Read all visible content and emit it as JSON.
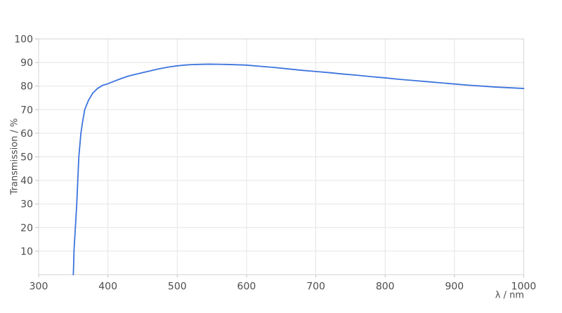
{
  "chart_data": {
    "type": "line",
    "title": "",
    "xlabel": "λ / nm",
    "ylabel": "Transmission / %",
    "xlim": [
      300,
      1000
    ],
    "ylim": [
      0,
      100
    ],
    "x_ticks": [
      300,
      400,
      500,
      600,
      700,
      800,
      900,
      1000
    ],
    "y_ticks": [
      10,
      20,
      30,
      40,
      50,
      60,
      70,
      80,
      90,
      100
    ],
    "grid": true,
    "legend_position": "none",
    "colors": {
      "line": "#3d74dd",
      "grid": "#e5e5e5",
      "border": "#d6d6d6",
      "tick": "#c4c4c4",
      "text": "#4d4d4d",
      "background": "#ffffff"
    },
    "series": [
      {
        "name": "Transmission",
        "points": [
          [
            350,
            0
          ],
          [
            350.5,
            4
          ],
          [
            351,
            10
          ],
          [
            353,
            20
          ],
          [
            355,
            30
          ],
          [
            356.5,
            40
          ],
          [
            358,
            50
          ],
          [
            361,
            60
          ],
          [
            363.5,
            65
          ],
          [
            366.5,
            70
          ],
          [
            372,
            74
          ],
          [
            378,
            77
          ],
          [
            385,
            79
          ],
          [
            392,
            80.3
          ],
          [
            400,
            81
          ],
          [
            410,
            82.2
          ],
          [
            420,
            83.3
          ],
          [
            430,
            84.3
          ],
          [
            440,
            85
          ],
          [
            450,
            85.7
          ],
          [
            460,
            86.4
          ],
          [
            470,
            87.1
          ],
          [
            480,
            87.7
          ],
          [
            490,
            88.2
          ],
          [
            500,
            88.6
          ],
          [
            510,
            88.9
          ],
          [
            520,
            89.1
          ],
          [
            530,
            89.2
          ],
          [
            545,
            89.3
          ],
          [
            560,
            89.25
          ],
          [
            575,
            89.15
          ],
          [
            590,
            89.0
          ],
          [
            600,
            88.9
          ],
          [
            620,
            88.4
          ],
          [
            640,
            87.9
          ],
          [
            660,
            87.3
          ],
          [
            680,
            86.7
          ],
          [
            700,
            86.2
          ],
          [
            720,
            85.7
          ],
          [
            740,
            85.1
          ],
          [
            760,
            84.6
          ],
          [
            780,
            84.0
          ],
          [
            800,
            83.5
          ],
          [
            820,
            82.9
          ],
          [
            840,
            82.4
          ],
          [
            860,
            81.9
          ],
          [
            880,
            81.4
          ],
          [
            900,
            80.9
          ],
          [
            920,
            80.4
          ],
          [
            940,
            80.0
          ],
          [
            960,
            79.6
          ],
          [
            980,
            79.3
          ],
          [
            1000,
            79.0
          ]
        ]
      }
    ]
  }
}
